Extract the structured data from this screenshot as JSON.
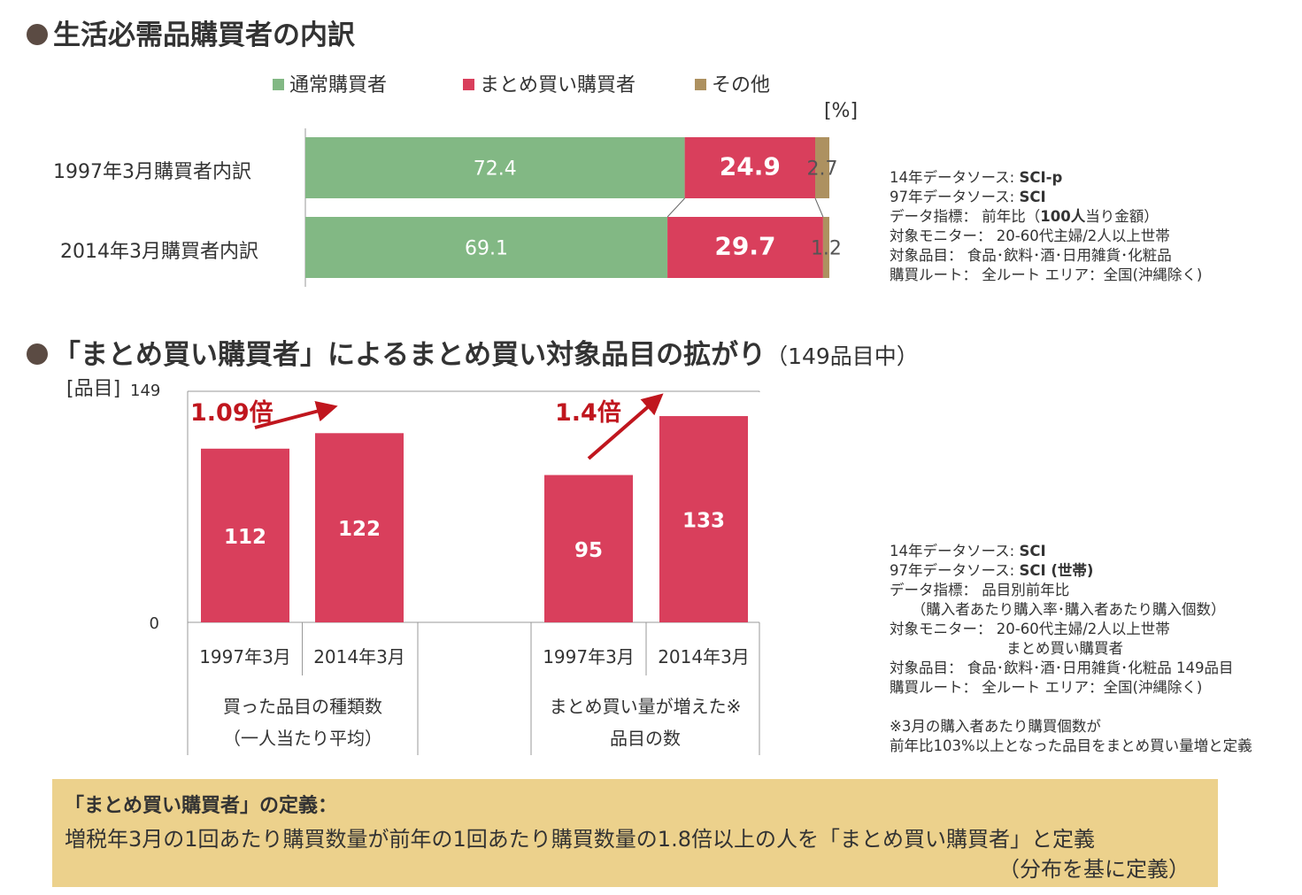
{
  "section1": {
    "bullet_title": "生活必需品購買者の内訳"
  },
  "legend": [
    {
      "label": "通常購買者",
      "color": "#82b884"
    },
    {
      "label": "まとめ買い購買者",
      "color": "#d93f5c"
    },
    {
      "label": "その他",
      "color": "#ad9160"
    }
  ],
  "section2": {
    "bullet_title": "「まとめ買い購買者」によるまとめ買い対象品目の拡がり",
    "bullet_subtitle": "（149品目中）"
  },
  "chart_data": [
    {
      "type": "bar",
      "orientation": "horizontal",
      "stacked": true,
      "unit_label": "[%]",
      "categories": [
        "1997年3月購買者内訳",
        "2014年3月購買者内訳"
      ],
      "series": [
        {
          "name": "通常購買者",
          "values": [
            72.4,
            69.1
          ],
          "color": "#82b884"
        },
        {
          "name": "まとめ買い購買者",
          "values": [
            24.9,
            29.7
          ],
          "color": "#d93f5c"
        },
        {
          "name": "その他",
          "values": [
            2.7,
            1.2
          ],
          "color": "#ad9160"
        }
      ],
      "xlim": [
        0,
        100
      ],
      "data_labels": [
        "72.4",
        "24.9",
        "2.7",
        "69.1",
        "29.7",
        "1.2"
      ]
    },
    {
      "type": "bar",
      "ylabel": "[品目]",
      "ylim": [
        0,
        149
      ],
      "y_ticks": [
        "0",
        "149"
      ],
      "groups": [
        {
          "label_line1": "買った品目の種類数",
          "label_line2": "（一人当たり平均）",
          "categories": [
            "1997年3月",
            "2014年3月"
          ],
          "values": [
            112,
            122
          ],
          "ratio_label": "1.09倍"
        },
        {
          "label_line1": "まとめ買い量が増えた※",
          "label_line2": "品目の数",
          "categories": [
            "1997年3月",
            "2014年3月"
          ],
          "values": [
            95,
            133
          ],
          "ratio_label": "1.4倍"
        }
      ],
      "bar_color": "#d93f5c",
      "arrow_color": "#c0161e"
    }
  ],
  "meta1": [
    [
      "14年データソース: ",
      "SCI-p",
      ""
    ],
    [
      "97年データソース: ",
      "SCI",
      ""
    ],
    [
      "データ指標： 前年比（",
      "100人",
      "当り金額）"
    ],
    [
      "対象モニター： 20-60代主婦/2人以上世帯",
      "",
      ""
    ],
    [
      "対象品目： 食品･飲料･酒･日用雑貨･化粧品",
      "",
      ""
    ],
    [
      "購買ルート： 全ルート エリア：全国(沖縄除く)",
      "",
      ""
    ]
  ],
  "meta2": [
    [
      "14年データソース: ",
      "SCI",
      ""
    ],
    [
      "97年データソース: ",
      "SCI (世帯)",
      ""
    ],
    [
      "データ指標： 品目別前年比",
      "",
      ""
    ],
    [
      "　　（購入者あたり購入率･購入者あたり購入個数）",
      "",
      ""
    ],
    [
      "対象モニター： 20-60代主婦/2人以上世帯",
      "",
      ""
    ],
    [
      "　　　　　　　　まとめ買い購買者",
      "",
      ""
    ],
    [
      "対象品目： 食品･飲料･酒･日用雑貨･化粧品 149品目",
      "",
      ""
    ],
    [
      "購買ルート： 全ルート エリア：全国(沖縄除く)",
      "",
      ""
    ],
    [
      "",
      "",
      ""
    ],
    [
      "※3月の購入者あたり購買個数が",
      "",
      ""
    ],
    [
      "前年比103%以上となった品目をまとめ買い量増と定義",
      "",
      ""
    ]
  ],
  "definition": {
    "title": "「まとめ買い購買者」の定義：",
    "text": "増税年3月の1回あたり購買数量が前年の1回あたり購買数量の1.8倍以上の人を「まとめ買い購買者」と定義",
    "note": "（分布を基に定義）"
  }
}
